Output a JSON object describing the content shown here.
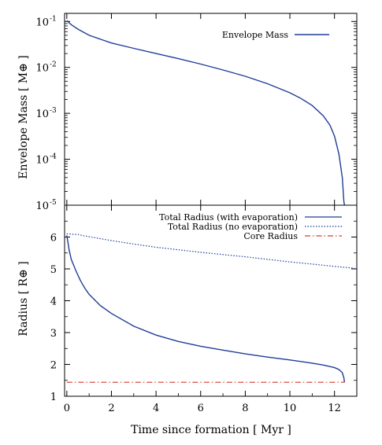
{
  "chart_data": [
    {
      "type": "line",
      "panel": "top",
      "ylabel": "Envelope Mass  [ M⊕ ]",
      "yscale": "log",
      "ylim": [
        1e-05,
        0.15
      ],
      "xlim": [
        -0.1,
        13
      ],
      "ytick_labels": [
        {
          "value": 0.1,
          "mantissa": "10",
          "exp": "-1"
        },
        {
          "value": 0.01,
          "mantissa": "10",
          "exp": "-2"
        },
        {
          "value": 0.001,
          "mantissa": "10",
          "exp": "-3"
        },
        {
          "value": 0.0001,
          "mantissa": "10",
          "exp": "-4"
        },
        {
          "value": 1e-05,
          "mantissa": "10",
          "exp": "-5"
        }
      ],
      "legend_position": "top-right",
      "series": [
        {
          "name": "Envelope Mass",
          "color": "#1f3d99",
          "style": "solid",
          "x": [
            0,
            0.2,
            0.5,
            1,
            2,
            3,
            4,
            5,
            6,
            7,
            8,
            9,
            10,
            10.5,
            11,
            11.5,
            11.8,
            12,
            12.2,
            12.35,
            12.42,
            12.45
          ],
          "y": [
            0.105,
            0.085,
            0.068,
            0.05,
            0.034,
            0.026,
            0.02,
            0.0155,
            0.0118,
            0.0088,
            0.0064,
            0.0044,
            0.0028,
            0.0021,
            0.00148,
            0.00088,
            0.00055,
            0.00032,
            0.00013,
            4e-05,
            1.2e-05,
            1e-05
          ]
        }
      ]
    },
    {
      "type": "line",
      "panel": "bottom",
      "xlabel": "Time since formation  [ Myr ]",
      "ylabel": "Radius   [ R⊕ ]",
      "xlim": [
        -0.1,
        13
      ],
      "ylim": [
        1,
        7
      ],
      "xticks": [
        0,
        2,
        4,
        6,
        8,
        10,
        12
      ],
      "yticks": [
        1,
        2,
        3,
        4,
        5,
        6
      ],
      "legend_position": "top-right",
      "series": [
        {
          "name": "Total Radius (with evaporation)",
          "color": "#1f3d99",
          "style": "solid",
          "x": [
            0,
            0.05,
            0.1,
            0.2,
            0.4,
            0.6,
            0.8,
            1,
            1.5,
            2,
            3,
            4,
            5,
            6,
            7,
            8,
            9,
            10,
            11,
            11.5,
            12,
            12.2,
            12.35,
            12.42,
            12.45
          ],
          "y": [
            6.05,
            5.85,
            5.6,
            5.3,
            4.95,
            4.65,
            4.4,
            4.2,
            3.85,
            3.6,
            3.2,
            2.92,
            2.72,
            2.57,
            2.45,
            2.33,
            2.23,
            2.14,
            2.04,
            1.98,
            1.9,
            1.84,
            1.74,
            1.58,
            1.44
          ]
        },
        {
          "name": "Total Radius  (no evaporation)",
          "color": "#1f3d99",
          "style": "dotted",
          "x": [
            0,
            0.5,
            1,
            2,
            3,
            4,
            5,
            6,
            7,
            8,
            9,
            10,
            11,
            12,
            12.9
          ],
          "y": [
            6.1,
            6.08,
            6.01,
            5.89,
            5.78,
            5.68,
            5.6,
            5.52,
            5.45,
            5.38,
            5.3,
            5.22,
            5.15,
            5.08,
            5.02
          ]
        },
        {
          "name": "Core  Radius",
          "color": "#d93a2b",
          "style": "dashdot",
          "x": [
            0,
            12.45
          ],
          "y": [
            1.44,
            1.44
          ]
        }
      ]
    }
  ]
}
